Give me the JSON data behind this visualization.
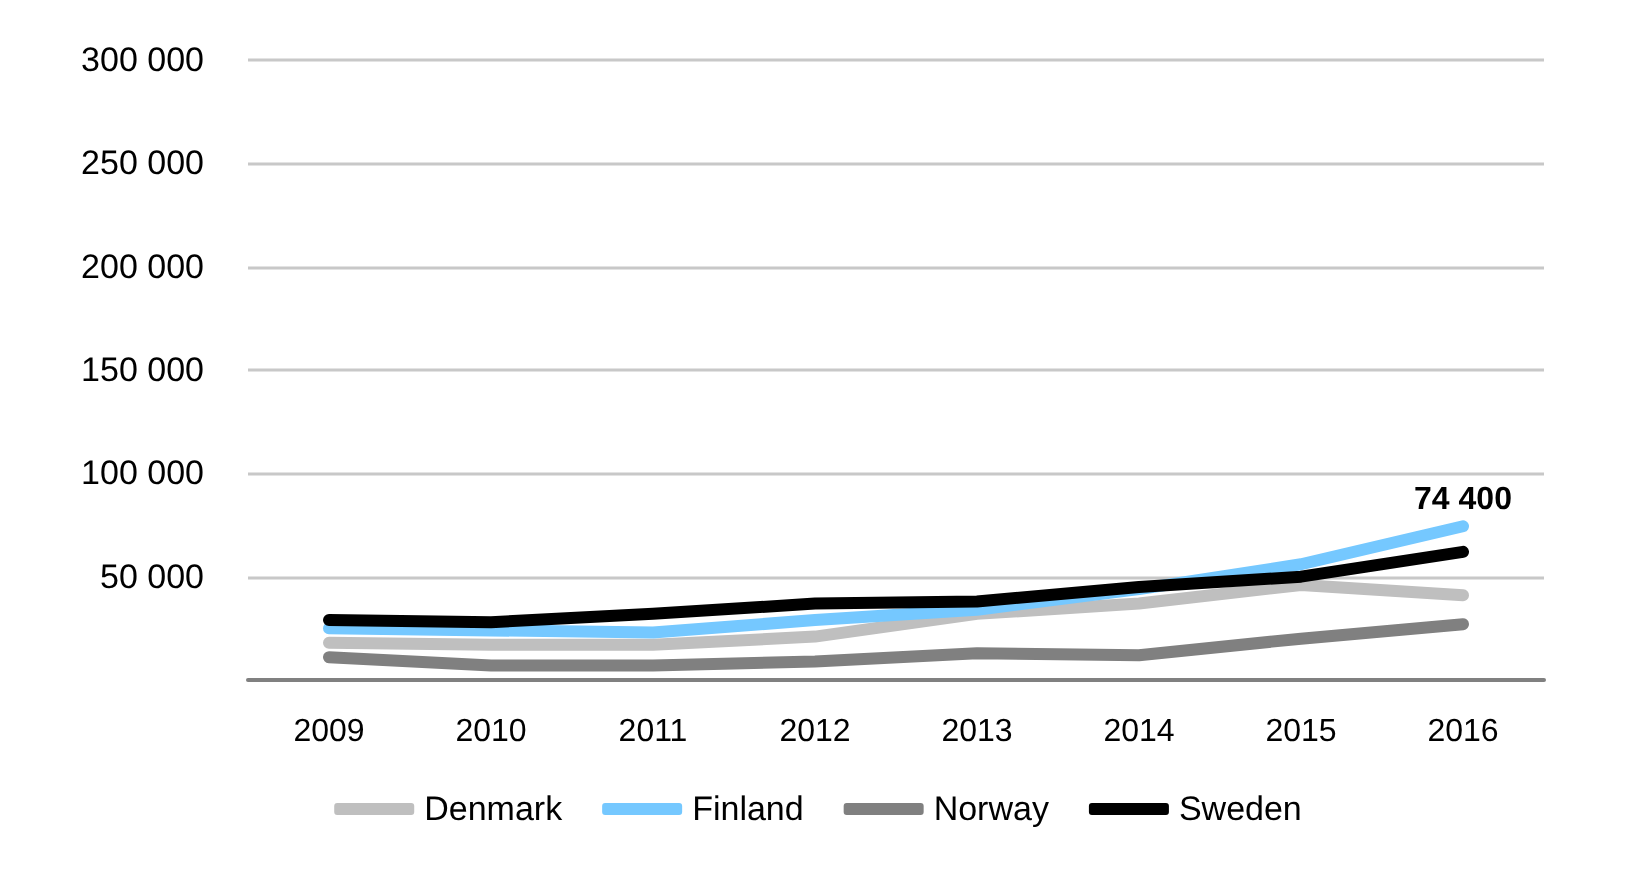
{
  "chart_data": {
    "type": "line",
    "categories": [
      "2009",
      "2010",
      "2011",
      "2012",
      "2013",
      "2014",
      "2015",
      "2016"
    ],
    "series": [
      {
        "name": "Denmark",
        "color": "#bfbfbf",
        "values": [
          18000,
          17000,
          17000,
          21000,
          32000,
          37000,
          46000,
          41000
        ]
      },
      {
        "name": "Finland",
        "color": "#75c8ff",
        "values": [
          25000,
          24000,
          23000,
          29000,
          34000,
          44000,
          56000,
          74400
        ],
        "value_labels": [
          null,
          null,
          null,
          null,
          null,
          null,
          null,
          "74 400"
        ]
      },
      {
        "name": "Norway",
        "color": "#808080",
        "values": [
          11000,
          7000,
          7000,
          9000,
          13000,
          12000,
          20000,
          27000
        ]
      },
      {
        "name": "Sweden",
        "color": "#000000",
        "values": [
          29000,
          28000,
          32000,
          37000,
          38000,
          45000,
          50000,
          62000
        ]
      }
    ],
    "ylim": [
      0,
      300000
    ],
    "yticks": [
      {
        "value": 50000,
        "label": "50 000"
      },
      {
        "value": 100000,
        "label": "100 000"
      },
      {
        "value": 150000,
        "label": "150 000"
      },
      {
        "value": 200000,
        "label": "200 000"
      },
      {
        "value": 250000,
        "label": "250 000"
      },
      {
        "value": 300000,
        "label": "300 000"
      }
    ],
    "grid": "y",
    "legend": "bottom",
    "marker": "none",
    "line_style": "solid"
  }
}
